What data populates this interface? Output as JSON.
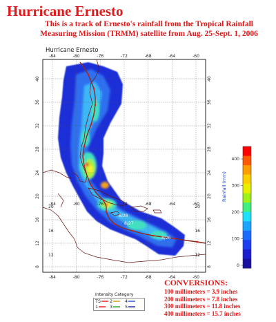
{
  "header": {
    "title": "Hurricane Ernesto",
    "subtitle_lines": [
      "This is a track of Ernesto's rainfall from the Tropical Rainfall",
      "Measuring Mission (TRMM) satellite from Aug. 25-Sept. 1, 2006"
    ]
  },
  "map": {
    "caption": "Hurricane Ernesto",
    "longitude_ticks_top": [
      "-84",
      "-80",
      "-76",
      "-72",
      "-68",
      "-64",
      "-60"
    ],
    "longitude_ticks_bottom": [
      "-84",
      "-80",
      "-76",
      "-72",
      "-68",
      "-64",
      "-60"
    ],
    "longitude_ticks_inner": [
      "-84",
      "-80",
      "-76",
      "-72",
      "-68",
      "-64",
      "-60"
    ],
    "latitude_ticks": [
      "40",
      "36",
      "32",
      "28",
      "24",
      "20",
      "16",
      "12",
      "8"
    ],
    "latitude_ticks_inner": [
      "20",
      "16",
      "12"
    ],
    "track_dates": [
      "8/28",
      "8/27",
      "8/26"
    ],
    "track_color": "#8b2a1c",
    "rain_colors": [
      "#1c2fd6",
      "#2f6ff0",
      "#3db7f5",
      "#43e0c0",
      "#a6ef3f",
      "#f4ef2f",
      "#f5a21d",
      "#ea3015"
    ]
  },
  "colorbar": {
    "ticks": [
      "400",
      "300",
      "200",
      "100",
      "0"
    ],
    "title": "Rainfall (mm)",
    "colors": [
      "#ff0000",
      "#ff5a00",
      "#ff9c00",
      "#ffd000",
      "#e8f000",
      "#9ef21a",
      "#3ff080",
      "#1ee0ff",
      "#1aa5ff",
      "#1b6aff",
      "#1b3ff0",
      "#1b1fcf",
      "#1a0fa0"
    ]
  },
  "conversions": {
    "title": "CONVERSIONS:",
    "lines": [
      "100 millimeters = 3.9 inches",
      "200 millimeters = 7.8 inches",
      "300 millimeters = 11.8 inches",
      "400 millimeters = 15.7 inches"
    ]
  },
  "intensity_legend": {
    "title": "Intensity Category",
    "items": [
      {
        "label": "TS",
        "color": "#e01a1a"
      },
      {
        "label": "1",
        "color": "#e01a1a"
      },
      {
        "label": "2",
        "color": "#c8a000"
      },
      {
        "label": "3",
        "color": "#22a522"
      },
      {
        "label": "4",
        "color": "#1b4fd0"
      },
      {
        "label": "5",
        "color": "#1b1fa0"
      }
    ]
  }
}
